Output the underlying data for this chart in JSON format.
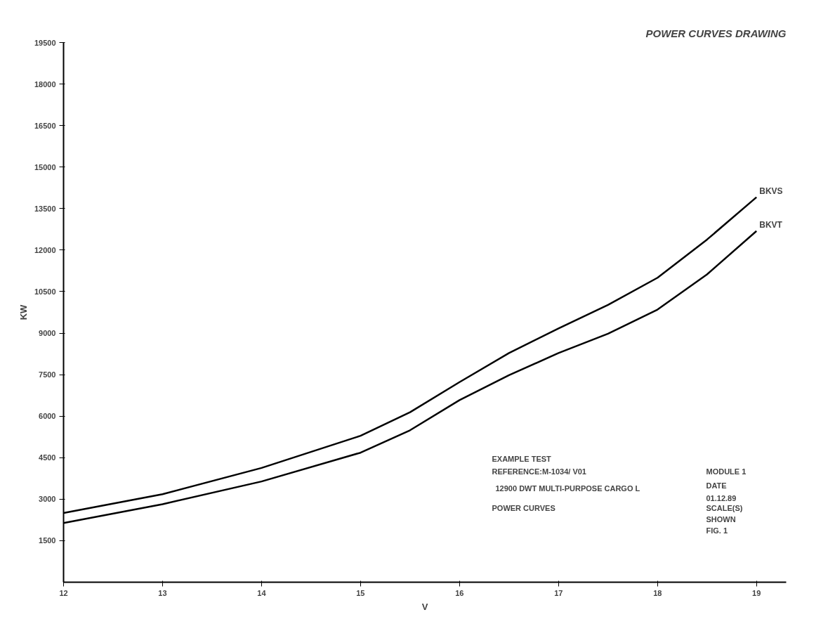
{
  "chart_data": {
    "type": "line",
    "title": "POWER CURVES DRAWING",
    "xlabel": "V",
    "ylabel": "KW",
    "x": [
      12,
      13,
      14,
      15,
      15.5,
      16,
      16.5,
      17,
      17.5,
      18,
      18.5,
      19
    ],
    "series": [
      {
        "name": "BKVS",
        "color": "#000000",
        "values": [
          2500,
          3180,
          4130,
          5290,
          6140,
          7230,
          8280,
          9170,
          10020,
          11000,
          12380,
          13910
        ]
      },
      {
        "name": "BKVT",
        "color": "#000000",
        "values": [
          2140,
          2820,
          3640,
          4680,
          5490,
          6580,
          7480,
          8280,
          8980,
          9850,
          11120,
          12690
        ]
      }
    ],
    "xlim": [
      12,
      19.3
    ],
    "xticks": [
      12,
      13,
      14,
      15,
      16,
      17,
      18,
      19
    ],
    "ylim": [
      0,
      19500
    ],
    "yticks": [
      1500,
      3000,
      4500,
      6000,
      7500,
      9000,
      10500,
      12000,
      13500,
      15000,
      16500,
      18000,
      19500
    ],
    "grid": false,
    "marker": "none",
    "line_style": "solid",
    "annotations": [
      "EXAMPLE TEST",
      "REFERENCE:M-1034/    V01",
      "12900 DWT MULTI-PURPOSE CARGO L",
      "POWER CURVES",
      "MODULE 1",
      "DATE",
      "01.12.89",
      "SCALE(S)",
      "SHOWN",
      "FIG. 1"
    ]
  }
}
